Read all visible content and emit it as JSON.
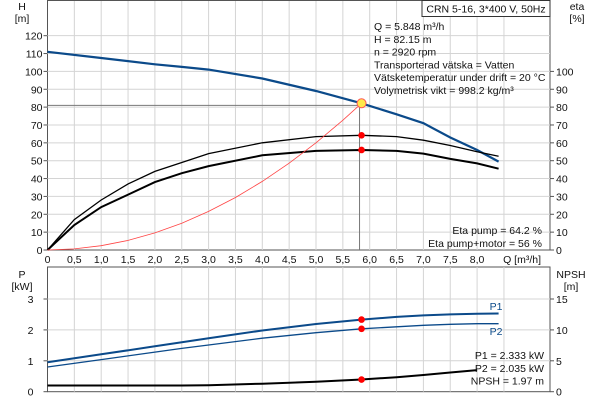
{
  "chart_data": [
    {
      "type": "line",
      "title": "CRN 5-16, 3*400 V, 50Hz",
      "xlabel": "Q [m³/h]",
      "ylabel": "H",
      "ylabel_unit": "[m]",
      "y2label": "eta",
      "y2label_unit": "[%]",
      "xlim": [
        0,
        8.4
      ],
      "ylim": [
        0,
        130
      ],
      "grid": true,
      "x_ticks": [
        "0",
        "0,5",
        "1,0",
        "1,5",
        "2,0",
        "2,5",
        "3,0",
        "3,5",
        "4,0",
        "4,5",
        "5,0",
        "5,5",
        "6,0",
        "6,5",
        "7,0",
        "7,5",
        "8,0"
      ],
      "y_ticks": [
        0,
        10,
        20,
        30,
        40,
        50,
        60,
        70,
        80,
        90,
        100,
        110,
        120
      ],
      "y2_ticks": [
        0,
        10,
        20,
        30,
        40,
        50,
        60,
        70,
        80,
        90,
        100
      ],
      "series": [
        {
          "name": "H",
          "color": "#0b4a8a",
          "x": [
            0,
            1,
            2,
            2.5,
            3,
            4,
            5,
            5.848,
            6.5,
            7,
            7.5,
            8,
            8.4
          ],
          "y": [
            111,
            107.5,
            104,
            102.5,
            101,
            96,
            89,
            82.15,
            76,
            71,
            63,
            56,
            49.5
          ]
        },
        {
          "name": "Eta pump",
          "color": "#000000",
          "x": [
            0,
            0.5,
            1,
            1.5,
            2,
            2.5,
            3,
            4,
            5,
            5.848,
            6.5,
            7,
            7.5,
            8,
            8.4
          ],
          "y": [
            0,
            17,
            28,
            37,
            44,
            49,
            54,
            60,
            63.5,
            64.2,
            63.5,
            61.5,
            58.5,
            55,
            52.5
          ]
        },
        {
          "name": "Eta pump+motor",
          "color": "#000000",
          "x": [
            0,
            0.5,
            1,
            1.5,
            2,
            2.5,
            3,
            4,
            5,
            5.848,
            6.5,
            7,
            7.5,
            8,
            8.4
          ],
          "y": [
            0,
            14,
            24,
            31,
            38,
            43,
            47,
            53,
            55.5,
            56,
            55.5,
            54,
            51,
            48.5,
            45.5
          ]
        },
        {
          "name": "System curve",
          "color": "#ff4444",
          "x": [
            0,
            0.5,
            1,
            1.5,
            2,
            2.5,
            3,
            3.5,
            4,
            4.5,
            5,
            5.5,
            5.848
          ],
          "y": [
            0,
            0.6,
            2.4,
            5.4,
            9.6,
            15,
            21.6,
            29.4,
            38.4,
            48.6,
            60,
            72.7,
            82.15
          ]
        }
      ],
      "duty_point": {
        "q": 5.848,
        "h": 82.15,
        "eta_pump": 64.2,
        "eta_total": 56
      },
      "info": [
        "Q = 5.848 m³/h",
        "H = 82.15 m",
        "n = 2920 rpm",
        "Transporterad vätska = Vatten",
        "Vätsketemperatur under drift = 20 °C",
        "Volymetrisk vikt = 998.2 kg/m³"
      ],
      "eta_info": [
        "Eta pump = 64.2 %",
        "Eta pump+motor = 56 %"
      ]
    },
    {
      "type": "line",
      "ylabel": "P",
      "ylabel_unit": "[kW]",
      "y2label": "NPSH",
      "y2label_unit": "[m]",
      "xlim": [
        0,
        8.4
      ],
      "ylim": [
        0,
        4
      ],
      "y2lim": [
        0,
        20
      ],
      "grid": true,
      "y_ticks": [
        0,
        1,
        2,
        3
      ],
      "y2_ticks": [
        0,
        5,
        10,
        15
      ],
      "series": [
        {
          "name": "P1",
          "color": "#0b4a8a",
          "x": [
            0,
            1,
            2,
            2.5,
            3,
            4,
            5,
            5.848,
            6.5,
            7,
            7.5,
            8,
            8.4
          ],
          "y": [
            0.95,
            1.21,
            1.47,
            1.6,
            1.73,
            1.98,
            2.19,
            2.333,
            2.42,
            2.47,
            2.5,
            2.52,
            2.53
          ]
        },
        {
          "name": "P2",
          "color": "#0b4a8a",
          "x": [
            0,
            1,
            2,
            2.5,
            3,
            4,
            5,
            5.848,
            6.5,
            7,
            7.5,
            8,
            8.4
          ],
          "y": [
            0.8,
            1.04,
            1.28,
            1.4,
            1.51,
            1.73,
            1.91,
            2.035,
            2.1,
            2.15,
            2.18,
            2.2,
            2.2
          ]
        },
        {
          "name": "NPSH",
          "color": "#000000",
          "axis": "y2",
          "x": [
            0,
            1,
            2,
            2.5,
            3,
            4,
            5,
            5.848,
            6.5,
            7,
            7.5,
            8
          ],
          "y": [
            1.0,
            1.0,
            1.0,
            1.0,
            1.05,
            1.3,
            1.6,
            1.97,
            2.35,
            2.7,
            3.1,
            3.5
          ]
        }
      ],
      "info": [
        "P1 = 2.333 kW",
        "P2 = 2.035 kW",
        "NPSH = 1.97 m"
      ]
    }
  ]
}
